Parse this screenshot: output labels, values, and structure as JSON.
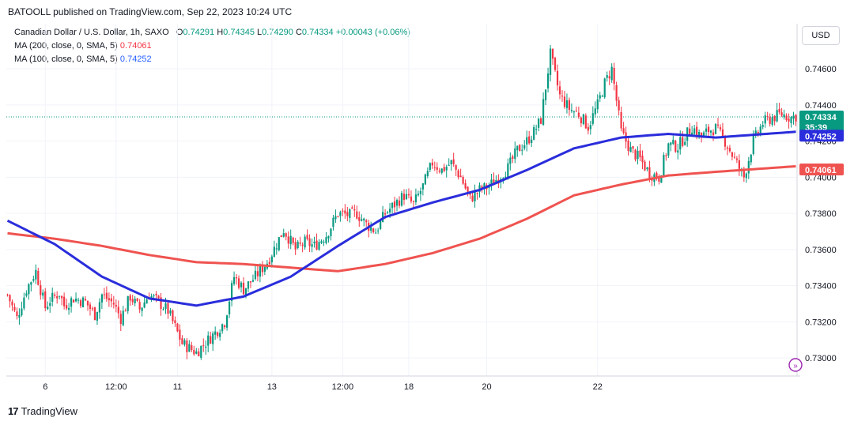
{
  "header": {
    "published_text": "BATOOLL published on TradingView.com, Sep 22, 2023 10:24 UTC"
  },
  "legend": {
    "symbol": "Canadian Dollar / U.S. Dollar, 1h, SAXO",
    "o_label": "O",
    "o_value": "0.74291",
    "h_label": "H",
    "h_value": "0.74345",
    "l_label": "L",
    "l_value": "0.74290",
    "c_label": "C",
    "c_value": "0.74334",
    "change": "+0.00043 (+0.06%)",
    "ma200_label": "MA (200, close, 0, SMA, 5)",
    "ma200_value": "0.74061",
    "ma100_label": "MA (100, close, 0, SMA, 5)",
    "ma100_value": "0.74252"
  },
  "currency_button": "USD",
  "price_tags": {
    "last_price": "0.74334",
    "countdown": "35:39",
    "ma100": "0.74252",
    "ma200": "0.74061"
  },
  "footer": {
    "brand": "TradingView",
    "logo_text": "17"
  },
  "colors": {
    "up": "#089981",
    "down": "#f23645",
    "ma100": "#2a2ddb",
    "ma200": "#ef5350",
    "grid": "#f0f3fa",
    "axis": "#d1d4dc"
  },
  "icons": {
    "scroll_icon": "double-arrow-circle-icon"
  },
  "chart_data": {
    "type": "candlestick",
    "title": "Canadian Dollar / U.S. Dollar, 1h, SAXO",
    "ylim": [
      0.729,
      0.7485
    ],
    "y_ticks": [
      "0.74600",
      "0.74400",
      "0.74200",
      "0.74000",
      "0.73800",
      "0.73600",
      "0.73400",
      "0.73200",
      "0.73000"
    ],
    "x_ticks": [
      "6",
      "12:00",
      "11",
      "13",
      "12:00",
      "18",
      "20",
      "22"
    ],
    "grid": true,
    "price_anchors": {
      "x": [
        0,
        4,
        8,
        12,
        16,
        18,
        22,
        24,
        28,
        33,
        37,
        40,
        45,
        48,
        52,
        56,
        60,
        64,
        68,
        74,
        80,
        85,
        88,
        92,
        96,
        100,
        105,
        110,
        112,
        117,
        122,
        126,
        130,
        135,
        140,
        145,
        148,
        152,
        156,
        160,
        164,
        168,
        172,
        176,
        180,
        184,
        188,
        192,
        196,
        200,
        204,
        208,
        212,
        216,
        220,
        223,
        226,
        230,
        234,
        238,
        242,
        246,
        250,
        253,
        256,
        260,
        264,
        268,
        272,
        276,
        280,
        284,
        290,
        294,
        297,
        300,
        304,
        308,
        312,
        316,
        320,
        324,
        328,
        332,
        334
      ],
      "price": [
        0.7335,
        0.7322,
        0.7338,
        0.7348,
        0.7328,
        0.7332,
        0.7336,
        0.7329,
        0.7333,
        0.7331,
        0.7324,
        0.7335,
        0.733,
        0.7322,
        0.7334,
        0.7327,
        0.7335,
        0.7331,
        0.7326,
        0.7308,
        0.7303,
        0.731,
        0.7314,
        0.732,
        0.7345,
        0.7338,
        0.7345,
        0.7353,
        0.7358,
        0.7371,
        0.736,
        0.7364,
        0.7362,
        0.7368,
        0.738,
        0.7379,
        0.738,
        0.7374,
        0.737,
        0.738,
        0.7385,
        0.739,
        0.7385,
        0.7395,
        0.7408,
        0.7404,
        0.7408,
        0.74,
        0.7388,
        0.7393,
        0.7395,
        0.74,
        0.7405,
        0.7415,
        0.742,
        0.7425,
        0.7432,
        0.7468,
        0.7445,
        0.7438,
        0.7435,
        0.7428,
        0.744,
        0.7452,
        0.746,
        0.7425,
        0.7415,
        0.741,
        0.7402,
        0.74,
        0.7418,
        0.7417,
        0.7428,
        0.7422,
        0.7426,
        0.7427,
        0.742,
        0.741,
        0.74,
        0.742,
        0.743,
        0.7433,
        0.7435,
        0.7433,
        0.7434
      ]
    },
    "ma100": {
      "name": "MA (100, close, 0, SMA, 5)",
      "x": [
        0,
        20,
        40,
        60,
        80,
        100,
        120,
        140,
        160,
        180,
        200,
        220,
        240,
        260,
        280,
        300,
        334
      ],
      "values": [
        0.7376,
        0.7363,
        0.7345,
        0.7333,
        0.7329,
        0.7334,
        0.7345,
        0.7362,
        0.7378,
        0.7386,
        0.7393,
        0.7404,
        0.7416,
        0.7422,
        0.7424,
        0.7422,
        0.74252
      ]
    },
    "ma200": {
      "name": "MA (200, close, 0, SMA, 5)",
      "x": [
        0,
        20,
        40,
        60,
        80,
        100,
        120,
        140,
        160,
        180,
        200,
        220,
        240,
        260,
        280,
        300,
        334
      ],
      "values": [
        0.7369,
        0.7366,
        0.7362,
        0.7357,
        0.7353,
        0.7352,
        0.735,
        0.7348,
        0.7352,
        0.7358,
        0.7366,
        0.7377,
        0.739,
        0.7396,
        0.7401,
        0.7403,
        0.74061
      ]
    },
    "last_price": 0.74334
  }
}
